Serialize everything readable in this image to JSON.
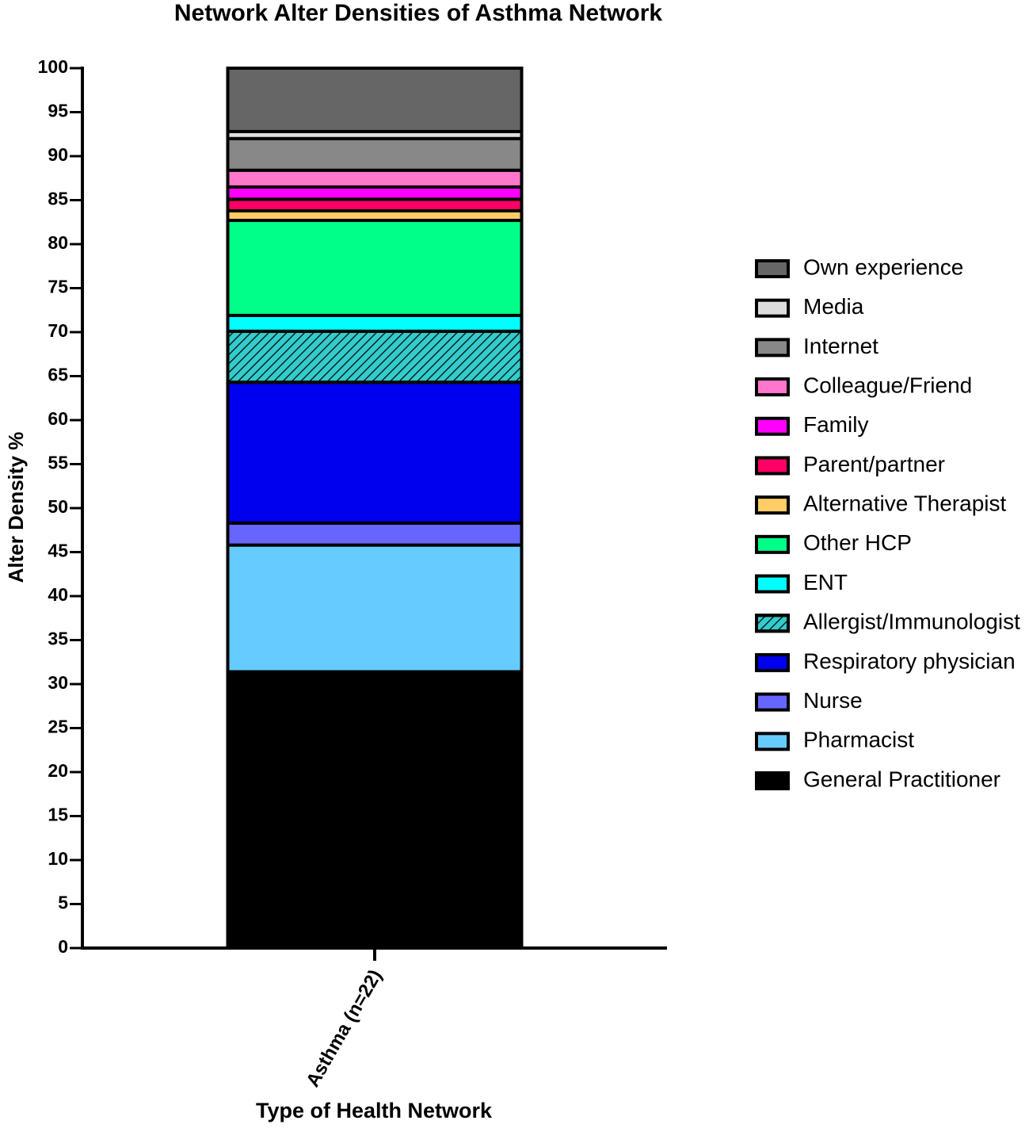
{
  "chart_data": {
    "type": "stacked-bar",
    "title": "Network Alter Densities of Asthma Network",
    "x_label": "Type of Health Network",
    "y_label": "Alter Density %",
    "categories": [
      "Asthma (n=22)"
    ],
    "ylim": [
      0,
      100
    ],
    "yticks": [
      0,
      5,
      10,
      15,
      20,
      25,
      30,
      35,
      40,
      45,
      50,
      55,
      60,
      65,
      70,
      75,
      80,
      85,
      90,
      95,
      100
    ],
    "legend": "right",
    "series": [
      {
        "name": "General Practitioner",
        "color": "#000000",
        "values": [
          31.4
        ]
      },
      {
        "name": "Pharmacist",
        "color": "#66ccff",
        "values": [
          14.4
        ]
      },
      {
        "name": "Nurse",
        "color": "#6666ff",
        "values": [
          2.5
        ]
      },
      {
        "name": "Respiratory physician",
        "color": "#0000ee",
        "values": [
          16.0
        ]
      },
      {
        "name": "Allergist/Immunologist",
        "color": "#33cccc",
        "hatch": true,
        "values": [
          5.8
        ]
      },
      {
        "name": "ENT",
        "color": "#00ffff",
        "values": [
          1.8
        ]
      },
      {
        "name": "Other HCP",
        "color": "#00ff88",
        "values": [
          10.8
        ]
      },
      {
        "name": "Alternative Therapist",
        "color": "#ffcc66",
        "values": [
          1.1
        ]
      },
      {
        "name": "Parent/partner",
        "color": "#ff0066",
        "values": [
          1.3
        ]
      },
      {
        "name": "Family",
        "color": "#ff00ff",
        "values": [
          1.4
        ]
      },
      {
        "name": "Colleague/Friend",
        "color": "#ff77cc",
        "values": [
          1.9
        ]
      },
      {
        "name": "Internet",
        "color": "#888888",
        "values": [
          3.6
        ]
      },
      {
        "name": "Media",
        "color": "#dddddd",
        "values": [
          0.8
        ]
      },
      {
        "name": "Own experience",
        "color": "#666666",
        "values": [
          7.2
        ]
      }
    ]
  }
}
